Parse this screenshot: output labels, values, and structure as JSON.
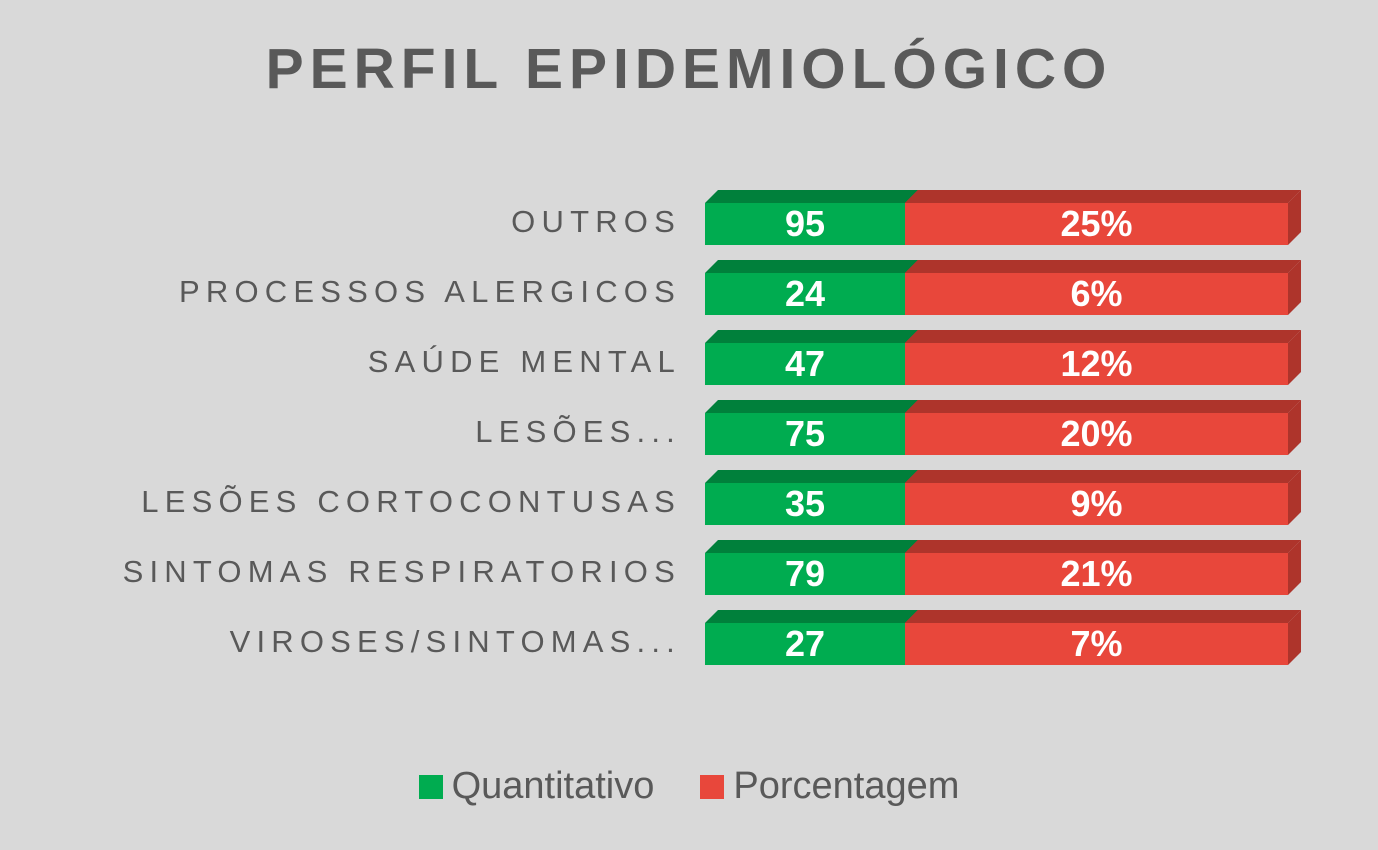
{
  "title": "PERFIL EPIDEMIOLÓGICO",
  "colors": {
    "background": "#d9d9d9",
    "text": "#595959",
    "value_text": "#ffffff",
    "green": "#00ac50",
    "green_dark": "#00803b",
    "red": "#e8473b",
    "red_dark": "#ae342b"
  },
  "legend": {
    "items": [
      {
        "label": "Quantitativo",
        "color": "#00ac50"
      },
      {
        "label": "Porcentagem",
        "color": "#e8473b"
      }
    ]
  },
  "chart_data": {
    "type": "bar",
    "orientation": "horizontal",
    "style": "3d-stacked",
    "title": "PERFIL EPIDEMIOLÓGICO",
    "xlabel": "",
    "ylabel": "",
    "grid": false,
    "legend_position": "bottom",
    "categories": [
      "OUTROS",
      "PROCESSOS ALERGICOS",
      "SAÚDE MENTAL",
      "LESÕES...",
      "LESÕES CORTOCONTUSAS",
      "SINTOMAS RESPIRATORIOS",
      "VIROSES/SINTOMAS..."
    ],
    "series": [
      {
        "name": "Quantitativo",
        "color": "#00ac50",
        "values": [
          95,
          24,
          47,
          75,
          35,
          79,
          27
        ]
      },
      {
        "name": "Porcentagem",
        "color": "#e8473b",
        "unit": "%",
        "values": [
          25,
          6,
          12,
          20,
          9,
          21,
          7
        ],
        "labels": [
          "25%",
          "6%",
          "12%",
          "20%",
          "9%",
          "21%",
          "7%"
        ]
      }
    ]
  }
}
